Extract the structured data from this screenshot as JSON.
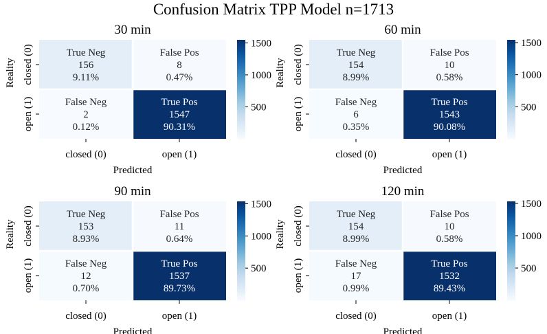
{
  "figure_title": "Confusion Matrix TPP Model n=1713",
  "chart_data": [
    {
      "type": "heatmap",
      "title": "30 min",
      "xlabel": "Predicted",
      "ylabel": "Reality",
      "x_categories": [
        "closed (0)",
        "open (1)"
      ],
      "y_categories": [
        "closed (0)",
        "open (1)"
      ],
      "cells": [
        [
          {
            "label": "True Neg",
            "count": 156,
            "percent": "9.11%"
          },
          {
            "label": "False Pos",
            "count": 8,
            "percent": "0.47%"
          }
        ],
        [
          {
            "label": "False Neg",
            "count": 2,
            "percent": "0.12%"
          },
          {
            "label": "True Pos",
            "count": 1547,
            "percent": "90.31%"
          }
        ]
      ],
      "colorbar": {
        "ticks": [
          500,
          1000,
          1500
        ],
        "range": [
          0,
          1547
        ],
        "colormap": "Blues"
      }
    },
    {
      "type": "heatmap",
      "title": "60 min",
      "xlabel": "Predicted",
      "ylabel": "Reality",
      "x_categories": [
        "closed (0)",
        "open (1)"
      ],
      "y_categories": [
        "closed (0)",
        "open (1)"
      ],
      "cells": [
        [
          {
            "label": "True Neg",
            "count": 154,
            "percent": "8.99%"
          },
          {
            "label": "False Pos",
            "count": 10,
            "percent": "0.58%"
          }
        ],
        [
          {
            "label": "False Neg",
            "count": 6,
            "percent": "0.35%"
          },
          {
            "label": "True Pos",
            "count": 1543,
            "percent": "90.08%"
          }
        ]
      ],
      "colorbar": {
        "ticks": [
          500,
          1000,
          1500
        ],
        "range": [
          0,
          1543
        ],
        "colormap": "Blues"
      }
    },
    {
      "type": "heatmap",
      "title": "90 min",
      "xlabel": "Predicted",
      "ylabel": "Reality",
      "x_categories": [
        "closed (0)",
        "open (1)"
      ],
      "y_categories": [
        "closed (0)",
        "open (1)"
      ],
      "cells": [
        [
          {
            "label": "True Neg",
            "count": 153,
            "percent": "8.93%"
          },
          {
            "label": "False Pos",
            "count": 11,
            "percent": "0.64%"
          }
        ],
        [
          {
            "label": "False Neg",
            "count": 12,
            "percent": "0.70%"
          },
          {
            "label": "True Pos",
            "count": 1537,
            "percent": "89.73%"
          }
        ]
      ],
      "colorbar": {
        "ticks": [
          500,
          1000,
          1500
        ],
        "range": [
          0,
          1537
        ],
        "colormap": "Blues"
      }
    },
    {
      "type": "heatmap",
      "title": "120 min",
      "xlabel": "Predicted",
      "ylabel": "Reality",
      "x_categories": [
        "closed (0)",
        "open (1)"
      ],
      "y_categories": [
        "closed (0)",
        "open (1)"
      ],
      "cells": [
        [
          {
            "label": "True Neg",
            "count": 154,
            "percent": "8.99%"
          },
          {
            "label": "False Pos",
            "count": 10,
            "percent": "0.58%"
          }
        ],
        [
          {
            "label": "False Neg",
            "count": 17,
            "percent": "0.99%"
          },
          {
            "label": "True Pos",
            "count": 1532,
            "percent": "89.43%"
          }
        ]
      ],
      "colorbar": {
        "ticks": [
          500,
          1000,
          1500
        ],
        "range": [
          0,
          1532
        ],
        "colormap": "Blues"
      }
    }
  ]
}
